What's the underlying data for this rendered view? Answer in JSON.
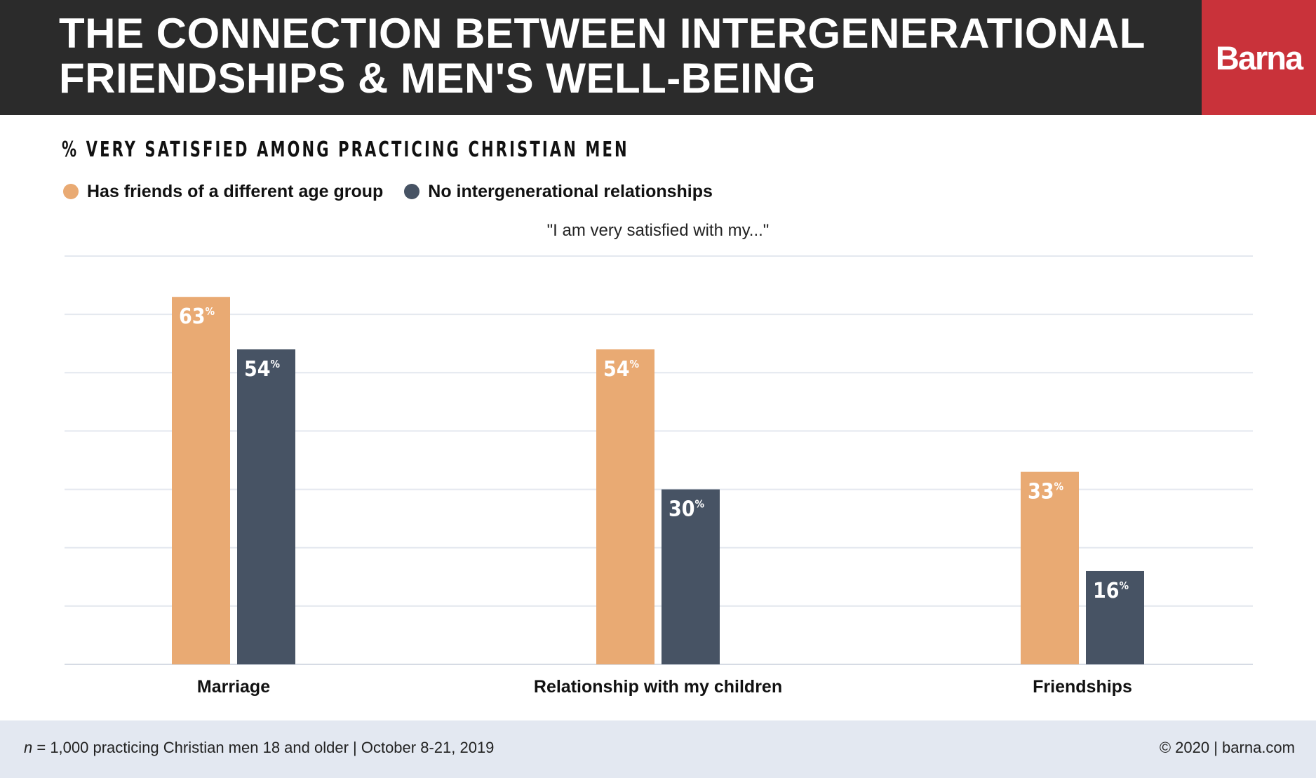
{
  "header": {
    "title_line1": "THE CONNECTION BETWEEN INTERGENERATIONAL",
    "title_line2": "FRIENDSHIPS & MEN'S WELL-BEING",
    "logo": "Barna"
  },
  "subtitle": "% VERY SATISFIED AMONG PRACTICING CHRISTIAN MEN",
  "caption": "\"I am very satisfied with my...\"",
  "colors": {
    "series1": "#e9aa73",
    "series2": "#475364",
    "header_bg": "#2b2b2b",
    "logo_bg": "#c9323a",
    "footer_bg": "#e3e8f1"
  },
  "chart_data": {
    "type": "bar",
    "categories": [
      "Marriage",
      "Relationship with my children",
      "Friendships"
    ],
    "series": [
      {
        "name": "Has friends of a different age group",
        "values": [
          63,
          54,
          33
        ]
      },
      {
        "name": "No intergenerational relationships",
        "values": [
          54,
          30,
          16
        ]
      }
    ],
    "value_suffix": "%",
    "ylim": [
      0,
      70
    ],
    "grid": true,
    "legend": "top-left"
  },
  "footer": {
    "n_label": "n",
    "sample": " = 1,000 practicing Christian men 18 and older | October 8-21, 2019",
    "copyright": "© 2020 | barna.com"
  }
}
